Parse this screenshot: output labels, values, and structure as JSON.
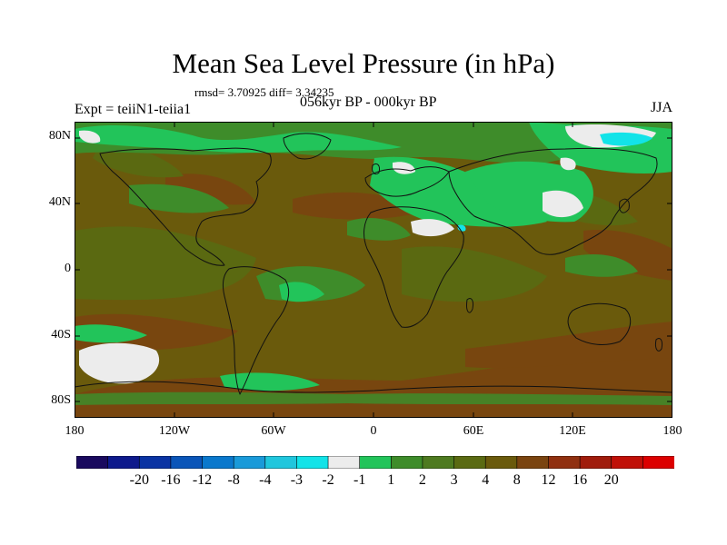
{
  "title": "Mean Sea Level Pressure (in hPa)",
  "stats": "rmsd= 3.70925 diff= 3.34235",
  "experiment": "Expt = teiiN1-teiia1",
  "period": "056kyr BP - 000kyr BP",
  "season": "JJA",
  "axes": {
    "y_ticks": [
      "80N",
      "40N",
      "0",
      "40S",
      "80S"
    ],
    "x_ticks": [
      "180",
      "120W",
      "60W",
      "0",
      "60E",
      "120E",
      "180"
    ]
  },
  "colorbar": {
    "colors": [
      "#1a0a5e",
      "#0e1a8c",
      "#0a33a3",
      "#0a55b8",
      "#0a78cc",
      "#1a9ad9",
      "#20c6dd",
      "#12e3e8",
      "#ececec",
      "#22c45a",
      "#3e8c2a",
      "#4e7a20",
      "#5a6a12",
      "#6a5a0c",
      "#7a4410",
      "#903010",
      "#a01c0c",
      "#c01008",
      "#dc0000"
    ],
    "labels": [
      "-20",
      "-16",
      "-12",
      "-8",
      "-4",
      "-3",
      "-2",
      "-1",
      "1",
      "2",
      "3",
      "4",
      "8",
      "12",
      "16",
      "20"
    ]
  },
  "map_colors": {
    "background": "#6a5a0c",
    "olive": "#5a6a12",
    "green": "#3e8c2a",
    "brightgreen": "#22c45a",
    "white": "#ececec",
    "cyan": "#12e3e8",
    "brown": "#7a4410",
    "coast": "#111111"
  }
}
